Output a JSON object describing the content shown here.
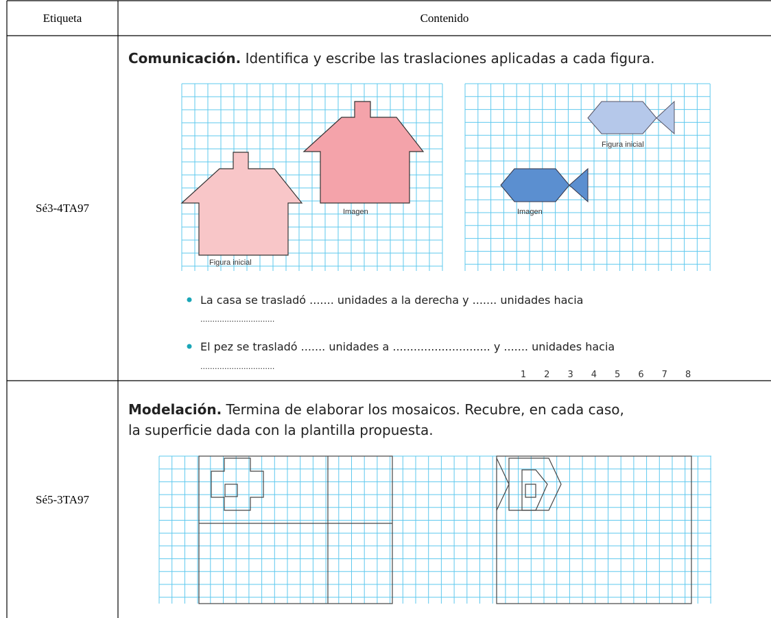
{
  "header": {
    "label": "Etiqueta",
    "content": "Contenido"
  },
  "rows": [
    {
      "label": "Sé3-4TA97",
      "heading": {
        "bold": "Comunicación.",
        "lines": [
          " Identifica y escribe las traslaciones aplicadas a cada figura."
        ]
      },
      "figures": {
        "house_initial": "Figura inicial",
        "house_image": "Imagen",
        "fish_initial": "Figura inicial",
        "fish_image": "Imagen"
      },
      "bullets": [
        [
          "La casa se trasladó ....... unidades a la derecha y ....... unidades hacia",
          "..............................."
        ],
        [
          "El pez se trasladó ....... unidades a ............................ y ....... unidades hacia",
          "..............................."
        ]
      ],
      "numbers": [
        1,
        2,
        3,
        4,
        5,
        6,
        7,
        8
      ]
    },
    {
      "label": "Sé5-3TA97",
      "heading": {
        "bold": "Modelación.",
        "lines": [
          " Termina de elaborar los mosaicos. Recubre, en cada caso,",
          "la superficie dada con la plantilla propuesta."
        ]
      }
    }
  ]
}
